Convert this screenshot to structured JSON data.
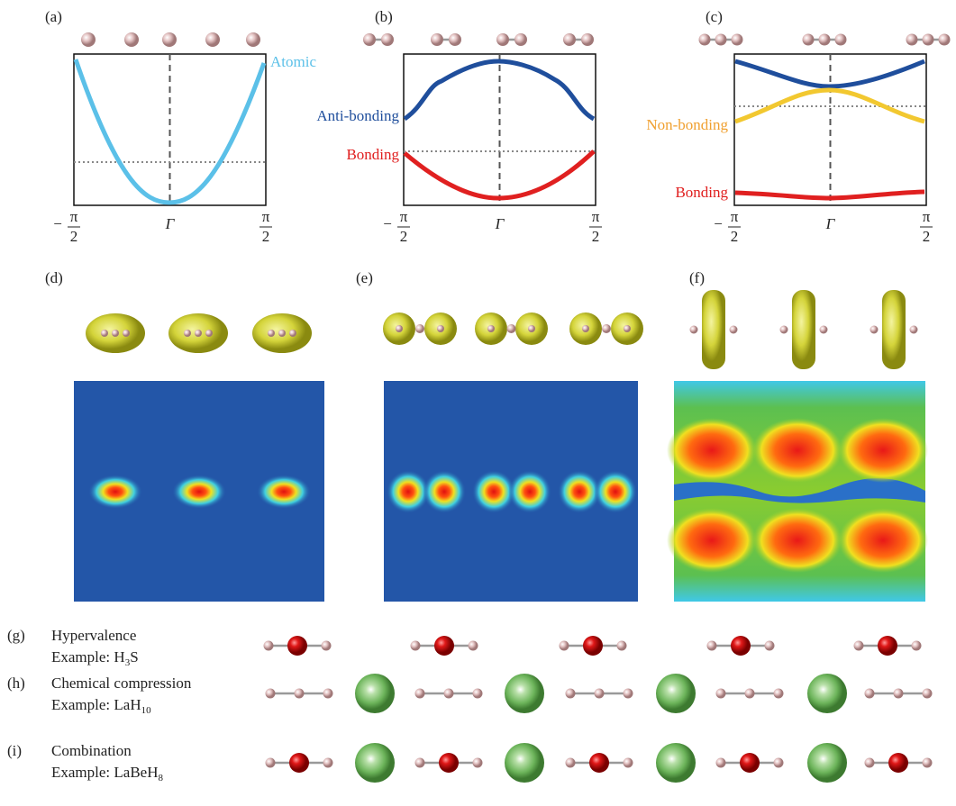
{
  "panels": {
    "a": {
      "label": "(a)",
      "band_labels": [
        "Atomic"
      ]
    },
    "b": {
      "label": "(b)",
      "band_labels": [
        "Anti-bonding",
        "Bonding"
      ]
    },
    "c": {
      "label": "(c)",
      "band_labels": [
        "Non-bonding",
        "Bonding"
      ]
    },
    "d": {
      "label": "(d)"
    },
    "e": {
      "label": "(e)"
    },
    "f": {
      "label": "(f)"
    }
  },
  "x_axis": {
    "left": {
      "sign": "−",
      "numerator": "π",
      "denominator": "2"
    },
    "center": "Γ",
    "right": {
      "numerator": "π",
      "denominator": "2"
    }
  },
  "rows": [
    {
      "label": "(g)",
      "title": "Hypervalence",
      "example": "Example: ",
      "formula": [
        {
          "text": "H"
        },
        {
          "text": "3",
          "sub": true
        },
        {
          "text": "S"
        }
      ]
    },
    {
      "label": "(h)",
      "title": "Chemical compression",
      "example": "Example: ",
      "formula": [
        {
          "text": "LaH"
        },
        {
          "text": "10",
          "sub": true
        }
      ]
    },
    {
      "label": "(i)",
      "title": "Combination",
      "example": "Example: ",
      "formula": [
        {
          "text": "LaBeH"
        },
        {
          "text": "8",
          "sub": true
        }
      ]
    }
  ]
}
